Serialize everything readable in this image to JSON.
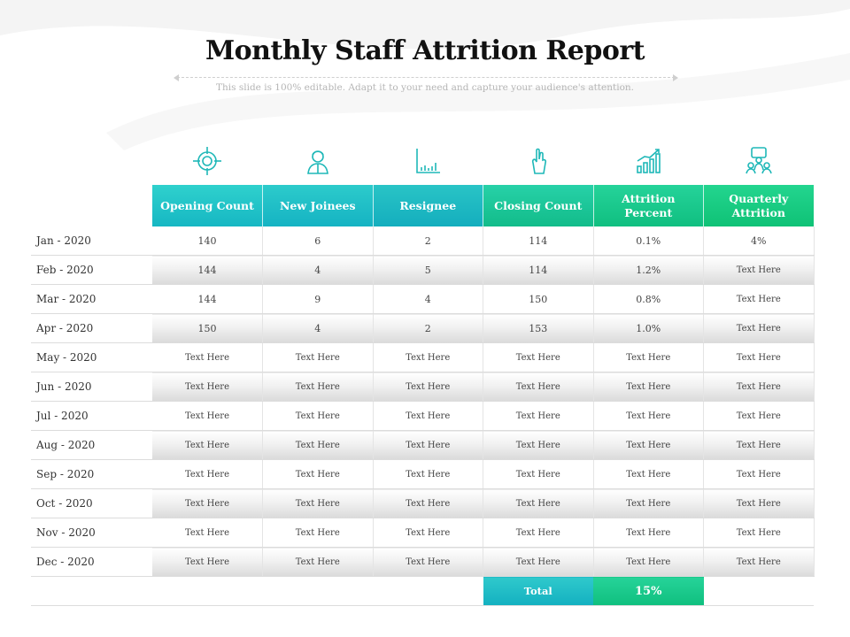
{
  "title": "Monthly Staff Attrition Report",
  "subtitle": "This slide is 100% editable. Adapt it to your need and capture your audience's attention.",
  "icons": [
    "target-icon",
    "user-icon",
    "bar-chart-icon",
    "hand-gesture-icon",
    "growth-chart-icon",
    "team-meeting-icon"
  ],
  "colors": {
    "teal": "#16b7c3",
    "green": "#10bf80"
  },
  "columns": [
    "Opening Count",
    "New Joinees",
    "Resignee",
    "Closing Count",
    "Attrition Percent",
    "Quarterly Attrition"
  ],
  "rows": [
    {
      "month": "Jan - 2020",
      "values": [
        "140",
        "6",
        "2",
        "114",
        "0.1%",
        "4%"
      ]
    },
    {
      "month": "Feb - 2020",
      "values": [
        "144",
        "4",
        "5",
        "114",
        "1.2%",
        "Text Here"
      ]
    },
    {
      "month": "Mar - 2020",
      "values": [
        "144",
        "9",
        "4",
        "150",
        "0.8%",
        "Text Here"
      ]
    },
    {
      "month": "Apr - 2020",
      "values": [
        "150",
        "4",
        "2",
        "153",
        "1.0%",
        "Text Here"
      ]
    },
    {
      "month": "May - 2020",
      "values": [
        "Text Here",
        "Text Here",
        "Text Here",
        "Text Here",
        "Text Here",
        "Text Here"
      ]
    },
    {
      "month": "Jun - 2020",
      "values": [
        "Text Here",
        "Text Here",
        "Text Here",
        "Text Here",
        "Text Here",
        "Text Here"
      ]
    },
    {
      "month": "Jul - 2020",
      "values": [
        "Text Here",
        "Text Here",
        "Text Here",
        "Text Here",
        "Text Here",
        "Text Here"
      ]
    },
    {
      "month": "Aug - 2020",
      "values": [
        "Text Here",
        "Text Here",
        "Text Here",
        "Text Here",
        "Text Here",
        "Text Here"
      ]
    },
    {
      "month": "Sep - 2020",
      "values": [
        "Text Here",
        "Text Here",
        "Text Here",
        "Text Here",
        "Text Here",
        "Text Here"
      ]
    },
    {
      "month": "Oct - 2020",
      "values": [
        "Text Here",
        "Text Here",
        "Text Here",
        "Text Here",
        "Text Here",
        "Text Here"
      ]
    },
    {
      "month": "Nov - 2020",
      "values": [
        "Text Here",
        "Text Here",
        "Text Here",
        "Text Here",
        "Text Here",
        "Text Here"
      ]
    },
    {
      "month": "Dec - 2020",
      "values": [
        "Text Here",
        "Text Here",
        "Text Here",
        "Text Here",
        "Text Here",
        "Text Here"
      ]
    }
  ],
  "total": {
    "label": "Total",
    "value": "15%"
  }
}
